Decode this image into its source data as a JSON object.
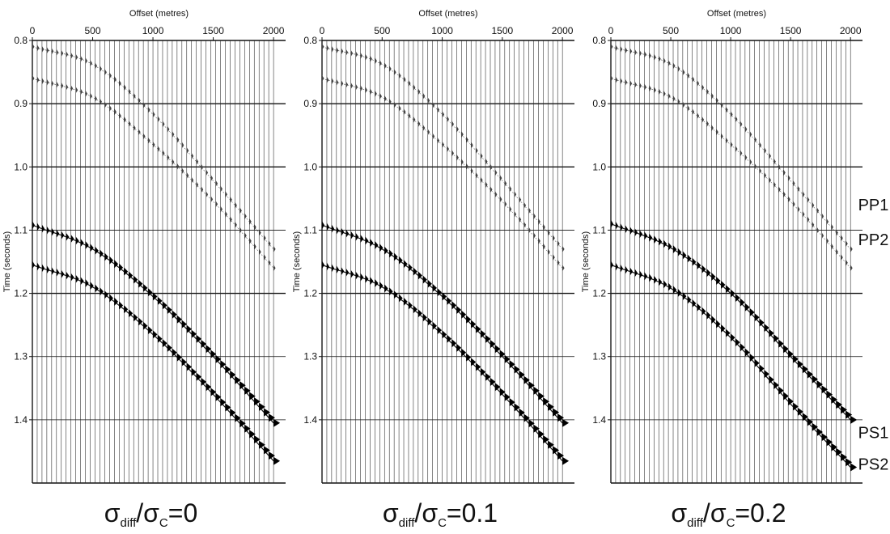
{
  "chart_data": [
    {
      "type": "line",
      "title": "",
      "xlabel": "Offset (metres)",
      "ylabel": "Time (seconds)",
      "xlim": [
        0,
        2100
      ],
      "ylim": [
        0.8,
        1.5
      ],
      "x_ticks": [
        "0",
        "500",
        "1000",
        "1500",
        "2000"
      ],
      "y_ticks": [
        "0.8",
        "0.9",
        "1.0",
        "1.1",
        "1.2",
        "1.3",
        "1.4"
      ],
      "caption": {
        "sym1": "σ",
        "sub1": "diff",
        "sym2": "/σ",
        "sub2": "C",
        "rest": "=0"
      },
      "event_labels": [],
      "x": [
        0,
        500,
        1000,
        1500,
        2000
      ],
      "series": [
        {
          "values": [
            0.81,
            0.838,
            0.917,
            1.022,
            1.13
          ]
        },
        {
          "values": [
            0.86,
            0.89,
            0.965,
            1.055,
            1.16
          ]
        },
        {
          "values": [
            1.092,
            1.13,
            1.205,
            1.3,
            1.405
          ]
        },
        {
          "values": [
            1.155,
            1.19,
            1.265,
            1.36,
            1.465
          ]
        }
      ]
    },
    {
      "type": "line",
      "title": "",
      "xlabel": "Offset (metres)",
      "ylabel": "Time (seconds)",
      "xlim": [
        0,
        2100
      ],
      "ylim": [
        0.8,
        1.5
      ],
      "x_ticks": [
        "0",
        "500",
        "1000",
        "1500",
        "2000"
      ],
      "y_ticks": [
        "0.8",
        "0.9",
        "1.0",
        "1.1",
        "1.2",
        "1.3",
        "1.4"
      ],
      "caption": {
        "sym1": "σ",
        "sub1": "diff",
        "sym2": "/σ",
        "sub2": "C",
        "rest": "=0.1"
      },
      "event_labels": [],
      "x": [
        0,
        500,
        1000,
        1500,
        2000
      ],
      "series": [
        {
          "values": [
            0.81,
            0.838,
            0.917,
            1.022,
            1.13
          ]
        },
        {
          "values": [
            0.86,
            0.89,
            0.965,
            1.055,
            1.16
          ]
        },
        {
          "values": [
            1.092,
            1.13,
            1.205,
            1.3,
            1.405
          ]
        },
        {
          "values": [
            1.155,
            1.19,
            1.265,
            1.36,
            1.465
          ]
        }
      ]
    },
    {
      "type": "line",
      "title": "",
      "xlabel": "Offset (metres)",
      "ylabel": "Time (seconds)",
      "xlim": [
        0,
        2100
      ],
      "ylim": [
        0.8,
        1.5
      ],
      "x_ticks": [
        "0",
        "500",
        "1000",
        "1500",
        "2000"
      ],
      "y_ticks": [
        "0.8",
        "0.9",
        "1.0",
        "1.1",
        "1.2",
        "1.3",
        "1.4"
      ],
      "caption": {
        "sym1": "σ",
        "sub1": "diff",
        "sym2": "/σ",
        "sub2": "C",
        "rest": "=0.2"
      },
      "event_labels": [
        {
          "text": "PP1",
          "x": 2050,
          "y": 1.06
        },
        {
          "text": "PP2",
          "x": 2050,
          "y": 1.115
        },
        {
          "text": "PS1",
          "x": 2050,
          "y": 1.42
        },
        {
          "text": "PS2",
          "x": 2050,
          "y": 1.47
        }
      ],
      "x": [
        0,
        500,
        1000,
        1500,
        2000
      ],
      "series": [
        {
          "values": [
            0.81,
            0.838,
            0.917,
            1.022,
            1.13
          ]
        },
        {
          "values": [
            0.86,
            0.89,
            0.965,
            1.055,
            1.16
          ]
        },
        {
          "values": [
            1.09,
            1.128,
            1.2,
            1.3,
            1.4
          ]
        },
        {
          "values": [
            1.155,
            1.192,
            1.27,
            1.375,
            1.475
          ]
        }
      ]
    }
  ]
}
